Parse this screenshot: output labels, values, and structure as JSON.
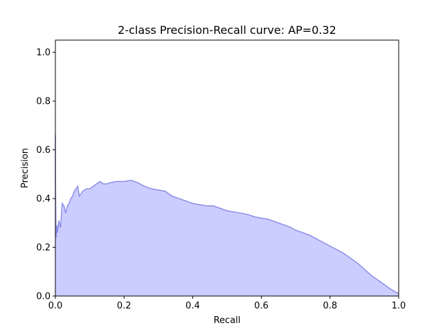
{
  "chart_data": {
    "type": "area",
    "title": "2-class Precision-Recall curve: AP=0.32",
    "xlabel": "Recall",
    "ylabel": "Precision",
    "xlim": [
      0.0,
      1.0
    ],
    "ylim": [
      0.0,
      1.05
    ],
    "x_ticks": [
      "0.0",
      "0.2",
      "0.4",
      "0.6",
      "0.8",
      "1.0"
    ],
    "y_ticks": [
      "0.0",
      "0.2",
      "0.4",
      "0.6",
      "0.8",
      "1.0"
    ],
    "grid": false,
    "series": [
      {
        "fill_color": "#cccdff",
        "line_color": "#8a8ee6",
        "x": [
          0.0,
          0.0,
          0.002,
          0.004,
          0.006,
          0.01,
          0.015,
          0.02,
          0.025,
          0.03,
          0.035,
          0.04,
          0.045,
          0.05,
          0.055,
          0.06,
          0.065,
          0.07,
          0.075,
          0.08,
          0.09,
          0.1,
          0.11,
          0.12,
          0.13,
          0.14,
          0.15,
          0.16,
          0.18,
          0.2,
          0.22,
          0.24,
          0.26,
          0.28,
          0.3,
          0.32,
          0.34,
          0.36,
          0.38,
          0.4,
          0.42,
          0.44,
          0.46,
          0.48,
          0.5,
          0.52,
          0.54,
          0.56,
          0.58,
          0.6,
          0.62,
          0.64,
          0.66,
          0.68,
          0.7,
          0.72,
          0.74,
          0.76,
          0.78,
          0.8,
          0.82,
          0.84,
          0.86,
          0.88,
          0.9,
          0.92,
          0.94,
          0.96,
          0.98,
          1.0
        ],
        "y": [
          0.66,
          0.5,
          0.24,
          0.29,
          0.26,
          0.31,
          0.28,
          0.38,
          0.37,
          0.34,
          0.37,
          0.38,
          0.4,
          0.41,
          0.43,
          0.44,
          0.45,
          0.41,
          0.42,
          0.43,
          0.44,
          0.44,
          0.45,
          0.46,
          0.47,
          0.46,
          0.46,
          0.465,
          0.47,
          0.47,
          0.475,
          0.465,
          0.45,
          0.44,
          0.435,
          0.43,
          0.41,
          0.4,
          0.39,
          0.38,
          0.375,
          0.37,
          0.37,
          0.36,
          0.35,
          0.345,
          0.34,
          0.335,
          0.325,
          0.32,
          0.315,
          0.305,
          0.295,
          0.285,
          0.27,
          0.26,
          0.25,
          0.235,
          0.22,
          0.205,
          0.19,
          0.175,
          0.155,
          0.135,
          0.11,
          0.085,
          0.065,
          0.045,
          0.025,
          0.01
        ]
      }
    ]
  }
}
